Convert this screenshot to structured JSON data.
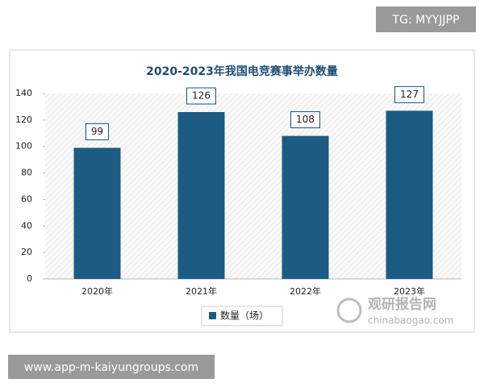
{
  "chart_data": {
    "type": "bar",
    "title": "2020-2023年我国电竞赛事举办数量",
    "categories": [
      "2020年",
      "2021年",
      "2022年",
      "2023年"
    ],
    "series": [
      {
        "name": "数量（场）",
        "color": "#1d5c82",
        "values": [
          99,
          126,
          108,
          127
        ]
      }
    ],
    "ylim": [
      0,
      140
    ],
    "yticks": [
      0,
      20,
      40,
      60,
      80,
      100,
      120,
      140
    ],
    "grid": false
  },
  "overlays": {
    "tag": "TG: MYYJJPP",
    "url": "www.app-m-kaiyungroups.com",
    "watermark": "观研报告网",
    "watermark_site": "chinabaogao.com"
  }
}
